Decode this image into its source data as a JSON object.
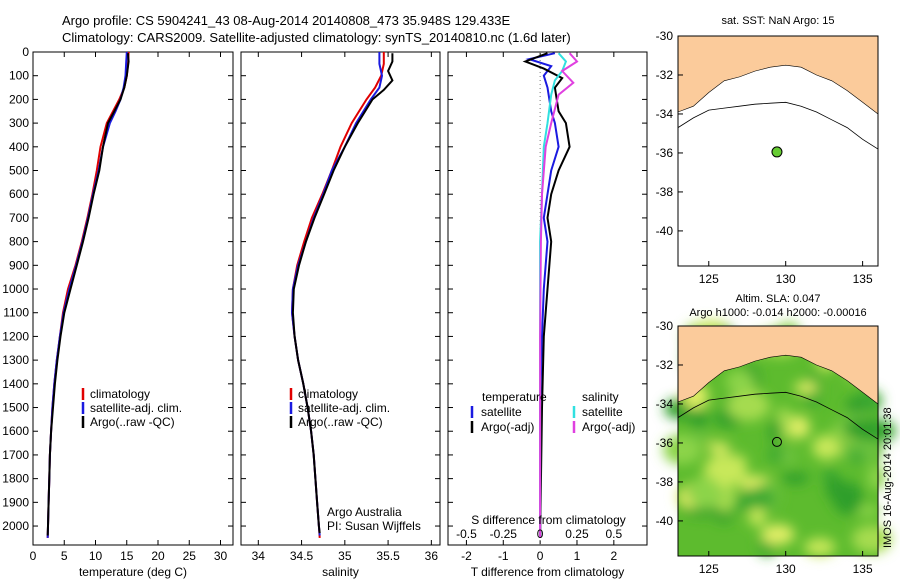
{
  "header": {
    "line1": "Argo profile: CS 5904241_43 08-Aug-2014 20140808_473 35.948S 129.433E",
    "line2": "Climatology: CARS2009. Satellite-adjusted climatology: synTS_20140810.nc (1.6d later)"
  },
  "stamp": "IMOS 16-Aug-2014 20:01:38",
  "credit": {
    "line1": "Argo Australia",
    "line2": "PI: Susan Wijffels"
  },
  "colors": {
    "climatology": "#e00000",
    "satellite": "#1a1ae0",
    "argo": "#000000",
    "salinity_sat": "#30e0e0",
    "salinity_argo": "#e040e0",
    "land": "#fbcb9b",
    "float": "#66cc33"
  },
  "chart_data": [
    {
      "type": "line",
      "id": "temperature",
      "xlabel": "temperature (deg C)",
      "xlim": [
        0,
        32
      ],
      "xticks": [
        0,
        5,
        10,
        15,
        20,
        25,
        30
      ],
      "ylim": [
        0,
        2080
      ],
      "yticks": [
        0,
        100,
        200,
        300,
        400,
        500,
        600,
        700,
        800,
        900,
        1000,
        1100,
        1200,
        1300,
        1400,
        1500,
        1600,
        1700,
        1800,
        1900,
        2000
      ],
      "legend": [
        "climatology",
        "satellite-adj. clim.",
        "Argo(..raw -QC)"
      ],
      "series": [
        {
          "name": "climatology",
          "color_key": "climatology",
          "points": [
            [
              15.3,
              0
            ],
            [
              15.2,
              50
            ],
            [
              15.0,
              100
            ],
            [
              14.6,
              150
            ],
            [
              13.8,
              200
            ],
            [
              12.8,
              250
            ],
            [
              11.8,
              300
            ],
            [
              10.8,
              400
            ],
            [
              10.2,
              500
            ],
            [
              9.5,
              600
            ],
            [
              8.7,
              700
            ],
            [
              7.8,
              800
            ],
            [
              6.8,
              900
            ],
            [
              5.6,
              1000
            ],
            [
              4.8,
              1100
            ],
            [
              4.3,
              1200
            ],
            [
              3.8,
              1300
            ],
            [
              3.4,
              1400
            ],
            [
              3.1,
              1500
            ],
            [
              2.9,
              1600
            ],
            [
              2.7,
              1700
            ],
            [
              2.6,
              1800
            ],
            [
              2.5,
              1900
            ],
            [
              2.4,
              2000
            ],
            [
              2.35,
              2050
            ]
          ]
        },
        {
          "name": "satellite-adj. clim.",
          "color_key": "satellite",
          "points": [
            [
              15.0,
              0
            ],
            [
              14.9,
              50
            ],
            [
              14.8,
              100
            ],
            [
              14.5,
              150
            ],
            [
              14.0,
              200
            ],
            [
              13.2,
              250
            ],
            [
              12.3,
              300
            ],
            [
              11.2,
              400
            ],
            [
              10.5,
              500
            ],
            [
              9.6,
              600
            ],
            [
              8.8,
              700
            ],
            [
              7.9,
              800
            ],
            [
              6.9,
              900
            ],
            [
              5.8,
              1000
            ],
            [
              4.9,
              1100
            ],
            [
              4.3,
              1200
            ],
            [
              3.8,
              1300
            ],
            [
              3.4,
              1400
            ],
            [
              3.1,
              1500
            ],
            [
              2.9,
              1600
            ],
            [
              2.7,
              1700
            ],
            [
              2.6,
              1800
            ],
            [
              2.5,
              1900
            ],
            [
              2.4,
              2000
            ],
            [
              2.35,
              2050
            ]
          ]
        },
        {
          "name": "Argo(..raw -QC)",
          "color_key": "argo",
          "points": [
            [
              15.2,
              5
            ],
            [
              15.3,
              40
            ],
            [
              15.0,
              100
            ],
            [
              14.6,
              150
            ],
            [
              14.0,
              200
            ],
            [
              13.0,
              250
            ],
            [
              12.0,
              300
            ],
            [
              11.2,
              400
            ],
            [
              10.6,
              500
            ],
            [
              9.7,
              600
            ],
            [
              8.9,
              700
            ],
            [
              8.0,
              800
            ],
            [
              7.0,
              900
            ],
            [
              6.0,
              1000
            ],
            [
              5.0,
              1100
            ],
            [
              4.4,
              1200
            ],
            [
              3.9,
              1300
            ],
            [
              3.5,
              1400
            ],
            [
              3.2,
              1500
            ],
            [
              2.9,
              1600
            ],
            [
              2.7,
              1700
            ],
            [
              2.6,
              1800
            ],
            [
              2.5,
              1900
            ],
            [
              2.4,
              2000
            ],
            [
              2.35,
              2040
            ]
          ]
        }
      ]
    },
    {
      "type": "line",
      "id": "salinity",
      "xlabel": "salinity",
      "xlim": [
        33.8,
        36.1
      ],
      "xticks": [
        34,
        34.5,
        35,
        35.5,
        36
      ],
      "ylim": [
        0,
        2080
      ],
      "legend": [
        "climatology",
        "satellite-adj. clim.",
        "Argo(..raw -QC)"
      ],
      "series": [
        {
          "name": "climatology",
          "color_key": "climatology",
          "points": [
            [
              35.45,
              0
            ],
            [
              35.45,
              50
            ],
            [
              35.42,
              100
            ],
            [
              35.35,
              150
            ],
            [
              35.25,
              200
            ],
            [
              35.08,
              300
            ],
            [
              34.95,
              400
            ],
            [
              34.85,
              500
            ],
            [
              34.74,
              600
            ],
            [
              34.62,
              700
            ],
            [
              34.53,
              800
            ],
            [
              34.45,
              900
            ],
            [
              34.4,
              1000
            ],
            [
              34.39,
              1100
            ],
            [
              34.42,
              1200
            ],
            [
              34.46,
              1300
            ],
            [
              34.52,
              1400
            ],
            [
              34.57,
              1500
            ],
            [
              34.61,
              1600
            ],
            [
              34.64,
              1700
            ],
            [
              34.66,
              1800
            ],
            [
              34.68,
              1900
            ],
            [
              34.7,
              2000
            ],
            [
              34.71,
              2050
            ]
          ]
        },
        {
          "name": "satellite-adj. clim.",
          "color_key": "satellite",
          "points": [
            [
              35.4,
              0
            ],
            [
              35.4,
              50
            ],
            [
              35.43,
              100
            ],
            [
              35.4,
              150
            ],
            [
              35.3,
              200
            ],
            [
              35.13,
              300
            ],
            [
              35.0,
              400
            ],
            [
              34.85,
              500
            ],
            [
              34.75,
              600
            ],
            [
              34.64,
              700
            ],
            [
              34.55,
              800
            ],
            [
              34.46,
              900
            ],
            [
              34.4,
              1000
            ],
            [
              34.39,
              1100
            ],
            [
              34.42,
              1200
            ],
            [
              34.46,
              1300
            ],
            [
              34.52,
              1400
            ],
            [
              34.57,
              1500
            ],
            [
              34.61,
              1600
            ],
            [
              34.64,
              1700
            ],
            [
              34.66,
              1800
            ],
            [
              34.68,
              1900
            ],
            [
              34.7,
              2000
            ],
            [
              34.71,
              2040
            ]
          ]
        },
        {
          "name": "Argo(..raw -QC)",
          "color_key": "argo",
          "points": [
            [
              35.55,
              5
            ],
            [
              35.55,
              40
            ],
            [
              35.5,
              80
            ],
            [
              35.55,
              120
            ],
            [
              35.45,
              160
            ],
            [
              35.32,
              200
            ],
            [
              35.15,
              300
            ],
            [
              35.0,
              400
            ],
            [
              34.87,
              500
            ],
            [
              34.76,
              600
            ],
            [
              34.65,
              700
            ],
            [
              34.55,
              800
            ],
            [
              34.47,
              900
            ],
            [
              34.41,
              1000
            ],
            [
              34.4,
              1100
            ],
            [
              34.42,
              1200
            ],
            [
              34.46,
              1300
            ],
            [
              34.52,
              1400
            ],
            [
              34.57,
              1500
            ],
            [
              34.61,
              1600
            ],
            [
              34.64,
              1700
            ],
            [
              34.66,
              1800
            ],
            [
              34.68,
              1900
            ],
            [
              34.7,
              2000
            ],
            [
              34.71,
              2030
            ]
          ]
        }
      ],
      "annotations": [
        "Argo Australia",
        "PI: Susan Wijffels"
      ]
    },
    {
      "type": "line",
      "id": "difference",
      "xlabel": "T difference from climatology",
      "x2label": "S difference from climatology",
      "xlim": [
        -2.5,
        2.9
      ],
      "xticks": [
        -2,
        -1,
        0,
        1,
        2
      ],
      "x2ticks": [
        "-0.5",
        "-0.25",
        "0",
        "0.25",
        "0.5"
      ],
      "x2tick_pos": [
        -2,
        -1,
        0,
        1,
        2
      ],
      "ylim": [
        0,
        2080
      ],
      "legend_left": {
        "title": "temperature",
        "items": [
          "satellite",
          "Argo(-adj)"
        ]
      },
      "legend_right": {
        "title": "salinity",
        "items": [
          "satellite",
          "Argo(-adj)"
        ]
      },
      "series": [
        {
          "name": "satellite",
          "group": "temperature",
          "color_key": "satellite",
          "points": [
            [
              0.4,
              5
            ],
            [
              -0.3,
              30
            ],
            [
              0.3,
              60
            ],
            [
              0.1,
              100
            ],
            [
              0.2,
              150
            ],
            [
              0.3,
              250
            ],
            [
              0.4,
              300
            ],
            [
              0.5,
              400
            ],
            [
              0.3,
              500
            ],
            [
              0.2,
              600
            ],
            [
              0.1,
              700
            ],
            [
              0.2,
              800
            ],
            [
              0.1,
              1000
            ],
            [
              0.05,
              1200
            ],
            [
              0.0,
              1500
            ],
            [
              0.0,
              2050
            ]
          ]
        },
        {
          "name": "Argo(-adj)",
          "group": "temperature",
          "color_key": "argo",
          "points": [
            [
              0.2,
              5
            ],
            [
              -0.4,
              40
            ],
            [
              0.1,
              70
            ],
            [
              0.6,
              110
            ],
            [
              0.4,
              150
            ],
            [
              0.5,
              250
            ],
            [
              0.7,
              300
            ],
            [
              0.8,
              400
            ],
            [
              0.5,
              500
            ],
            [
              0.3,
              600
            ],
            [
              0.2,
              700
            ],
            [
              0.3,
              800
            ],
            [
              0.2,
              1000
            ],
            [
              0.1,
              1200
            ],
            [
              0.05,
              1500
            ],
            [
              0.0,
              2050
            ]
          ]
        },
        {
          "name": "satellite",
          "group": "salinity",
          "color_key": "salinity_sat",
          "points": [
            [
              0.5,
              5
            ],
            [
              0.7,
              40
            ],
            [
              0.6,
              80
            ],
            [
              0.4,
              120
            ],
            [
              0.3,
              180
            ],
            [
              0.2,
              300
            ],
            [
              0.1,
              400
            ],
            [
              0.05,
              600
            ],
            [
              0.0,
              800
            ],
            [
              0.0,
              1200
            ],
            [
              0.0,
              2050
            ]
          ]
        },
        {
          "name": "Argo(-adj)",
          "group": "salinity",
          "color_key": "salinity_argo",
          "points": [
            [
              0.8,
              5
            ],
            [
              1.0,
              40
            ],
            [
              0.6,
              80
            ],
            [
              0.9,
              130
            ],
            [
              0.5,
              180
            ],
            [
              0.3,
              300
            ],
            [
              0.15,
              400
            ],
            [
              0.05,
              600
            ],
            [
              0.02,
              800
            ],
            [
              0.0,
              1200
            ],
            [
              0.0,
              2050
            ]
          ]
        }
      ]
    },
    {
      "type": "map",
      "id": "sst_map",
      "title": "sat. SST: NaN Argo: 15",
      "xlim": [
        123,
        136
      ],
      "xticks": [
        125,
        130,
        135
      ],
      "ylim": [
        -41.8,
        -30
      ],
      "yticks": [
        -30,
        -32,
        -34,
        -36,
        -38,
        -40
      ],
      "float_position": [
        129.433,
        -35.948
      ]
    },
    {
      "type": "map",
      "id": "sla_map",
      "title": "Altim. SLA: 0.047",
      "subtitle": "Argo h1000: -0.014 h2000: -0.00016",
      "xlim": [
        123,
        136
      ],
      "xticks": [
        125,
        130,
        135
      ],
      "ylim": [
        -41.8,
        -30
      ],
      "yticks": [
        -30,
        -32,
        -34,
        -36,
        -38,
        -40
      ],
      "float_position": [
        129.433,
        -35.948
      ]
    }
  ]
}
